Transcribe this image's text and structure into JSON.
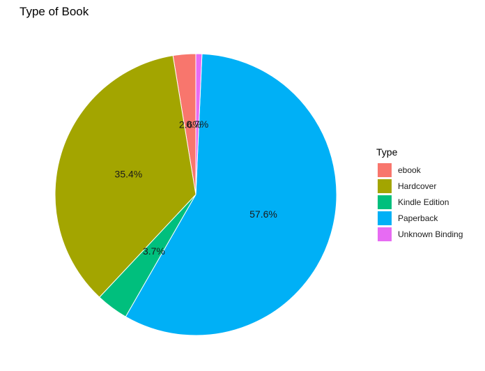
{
  "chart_data": {
    "type": "pie",
    "title": "Type of Book",
    "legend_title": "Type",
    "legend_position": "right",
    "slices": [
      {
        "label": "ebook",
        "value": 2.6,
        "display": "2.6%",
        "color": "#F8766D"
      },
      {
        "label": "Hardcover",
        "value": 35.4,
        "display": "35.4%",
        "color": "#A3A500"
      },
      {
        "label": "Kindle Edition",
        "value": 3.7,
        "display": "3.7%",
        "color": "#00BF7D"
      },
      {
        "label": "Paperback",
        "value": 57.6,
        "display": "57.6%",
        "color": "#00B0F6"
      },
      {
        "label": "Unknown Binding",
        "value": 0.7,
        "display": "0.7%",
        "color": "#E76BF3"
      }
    ]
  }
}
